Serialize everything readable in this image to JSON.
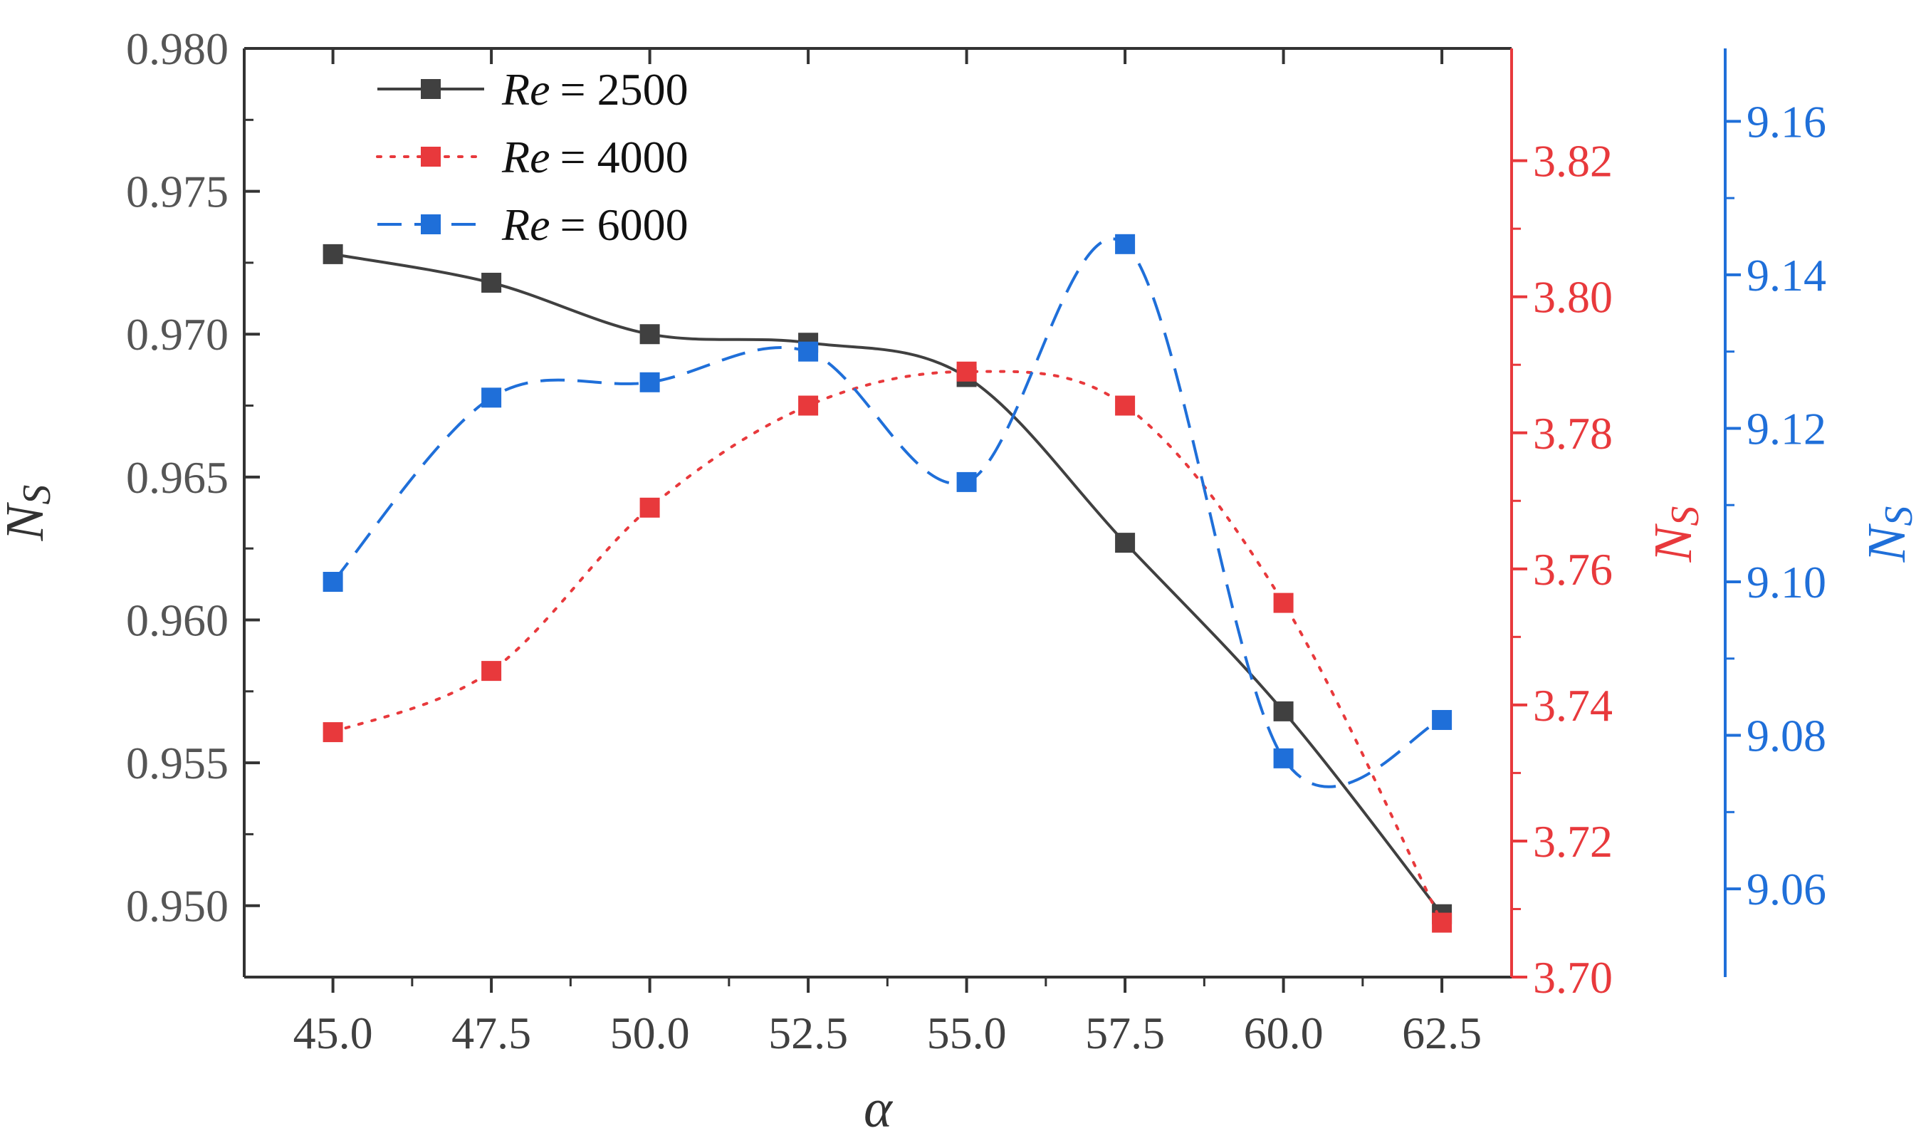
{
  "chart_data": {
    "type": "line",
    "x": [
      45.0,
      47.5,
      50.0,
      52.5,
      55.0,
      57.5,
      60.0,
      62.5
    ],
    "x_tick_labels": [
      "45.0",
      "47.5",
      "50.0",
      "52.5",
      "55.0",
      "57.5",
      "60.0",
      "62.5"
    ],
    "xlim": [
      43.6,
      63.6
    ],
    "xlabel": "α",
    "axes": {
      "left": {
        "label_main": "N",
        "label_sub": "S",
        "color": "#404040",
        "ylim": [
          0.9475,
          0.98
        ],
        "ticks": [
          0.95,
          0.955,
          0.96,
          0.965,
          0.97,
          0.975,
          0.98
        ],
        "tick_labels": [
          "0.950",
          "0.955",
          "0.960",
          "0.965",
          "0.970",
          "0.975",
          "0.980"
        ]
      },
      "right1": {
        "label_main": "N",
        "label_sub": "S",
        "color": "#e8393c",
        "ylim": [
          3.7,
          3.8365
        ],
        "ticks": [
          3.7,
          3.72,
          3.74,
          3.76,
          3.78,
          3.8,
          3.82
        ],
        "tick_labels": [
          "3.70",
          "3.72",
          "3.74",
          "3.76",
          "3.78",
          "3.80",
          "3.82"
        ]
      },
      "right2": {
        "label_main": "N",
        "label_sub": "S",
        "color": "#1f6fd9",
        "ylim": [
          9.0485,
          9.1695
        ],
        "ticks": [
          9.06,
          9.08,
          9.1,
          9.12,
          9.14,
          9.16
        ],
        "tick_labels": [
          "9.06",
          "9.08",
          "9.10",
          "9.12",
          "9.14",
          "9.16"
        ]
      }
    },
    "series": [
      {
        "name_prefix": "Re",
        "name_value": "= 2500",
        "axis": "left",
        "color": "#404040",
        "line_style": "solid",
        "values": [
          0.9728,
          0.9718,
          0.97,
          0.9697,
          0.9685,
          0.9627,
          0.9568,
          0.9497
        ]
      },
      {
        "name_prefix": "Re",
        "name_value": "= 4000",
        "axis": "right1",
        "color": "#e8393c",
        "line_style": "dotted",
        "values": [
          3.736,
          3.745,
          3.769,
          3.784,
          3.789,
          3.784,
          3.755,
          3.708
        ]
      },
      {
        "name_prefix": "Re",
        "name_value": "= 6000",
        "axis": "right2",
        "color": "#1f6fd9",
        "line_style": "dashed",
        "values": [
          9.1,
          9.124,
          9.126,
          9.13,
          9.113,
          9.144,
          9.077,
          9.082
        ]
      }
    ],
    "legend_position": "top-left"
  }
}
